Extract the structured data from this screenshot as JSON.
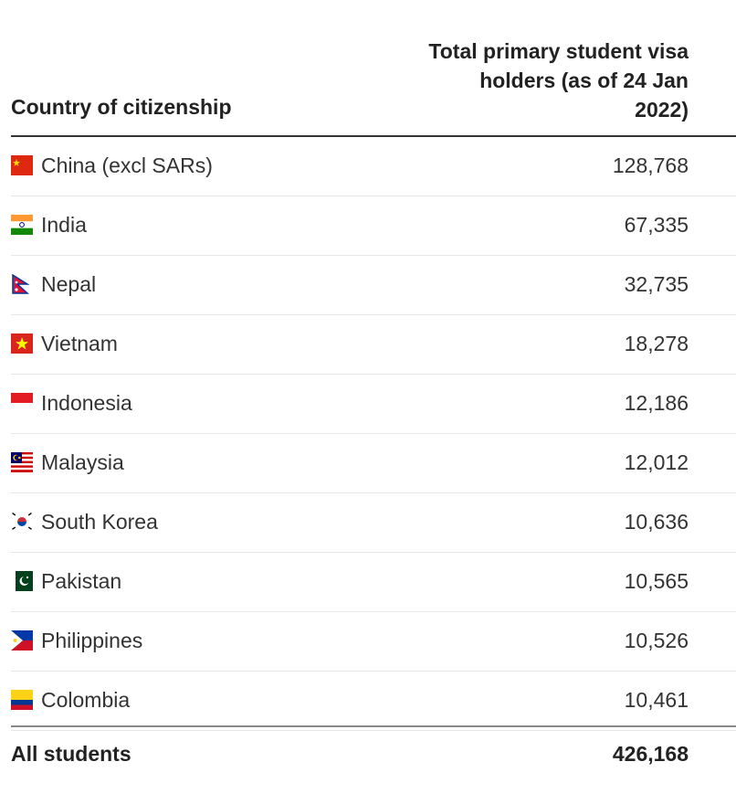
{
  "chart_data": {
    "type": "table",
    "columns": [
      "Country of citizenship",
      "Total primary student visa holders (as of 24 Jan 2022)"
    ],
    "header_total_lines": [
      "Total primary student visa",
      "holders (as of 24 Jan",
      "2022)"
    ],
    "rows": [
      {
        "country": "China (excl SARs)",
        "flag": "china-flag-icon",
        "value": "128,768"
      },
      {
        "country": "India",
        "flag": "india-flag-icon",
        "value": "67,335"
      },
      {
        "country": "Nepal",
        "flag": "nepal-flag-icon",
        "value": "32,735"
      },
      {
        "country": "Vietnam",
        "flag": "vietnam-flag-icon",
        "value": "18,278"
      },
      {
        "country": "Indonesia",
        "flag": "indonesia-flag-icon",
        "value": "12,186"
      },
      {
        "country": "Malaysia",
        "flag": "malaysia-flag-icon",
        "value": "12,012"
      },
      {
        "country": "South Korea",
        "flag": "south-korea-flag-icon",
        "value": "10,636"
      },
      {
        "country": "Pakistan",
        "flag": "pakistan-flag-icon",
        "value": "10,565"
      },
      {
        "country": "Philippines",
        "flag": "philippines-flag-icon",
        "value": "10,526"
      },
      {
        "country": "Colombia",
        "flag": "colombia-flag-icon",
        "value": "10,461"
      }
    ],
    "total": {
      "label": "All students",
      "value": "426,168"
    }
  }
}
